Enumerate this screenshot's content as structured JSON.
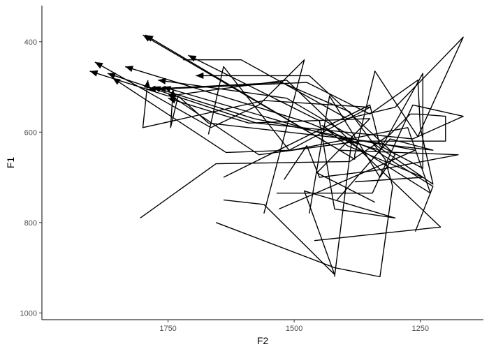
{
  "chart_data": {
    "type": "line",
    "title": "",
    "xlabel": "F2",
    "ylabel": "F1",
    "x_reversed": true,
    "y_reversed": true,
    "xlim": [
      2000,
      1125
    ],
    "ylim": [
      1015,
      320
    ],
    "x_ticks": [
      1750,
      1500,
      1250
    ],
    "y_ticks": [
      400,
      600,
      800,
      1000
    ],
    "grid": false,
    "legend": "none",
    "line_color": "#000000",
    "arrow_at_end": true,
    "series": [
      {
        "values": [
          [
            1670,
            605
          ],
          [
            1640,
            455
          ],
          [
            1510,
            640
          ],
          [
            1350,
            545
          ],
          [
            1560,
            530
          ],
          [
            1800,
            590
          ],
          [
            1790,
            485
          ]
        ]
      },
      {
        "values": [
          [
            1460,
            840
          ],
          [
            1210,
            810
          ],
          [
            1515,
            485
          ],
          [
            1750,
            520
          ],
          [
            1905,
            465
          ]
        ]
      },
      {
        "values": [
          [
            1350,
            620
          ],
          [
            1225,
            715
          ],
          [
            1250,
            590
          ],
          [
            1255,
            485
          ],
          [
            1350,
            560
          ],
          [
            1475,
            490
          ],
          [
            1770,
            505
          ]
        ]
      },
      {
        "values": [
          [
            1520,
            705
          ],
          [
            1475,
            630
          ],
          [
            1450,
            700
          ],
          [
            1340,
            685
          ],
          [
            1175,
            650
          ],
          [
            1410,
            640
          ],
          [
            1800,
            385
          ]
        ]
      },
      {
        "values": [
          [
            1340,
            755
          ],
          [
            1455,
            690
          ],
          [
            1350,
            570
          ],
          [
            1590,
            580
          ],
          [
            1750,
            525
          ]
        ]
      },
      {
        "values": [
          [
            1415,
            750
          ],
          [
            1310,
            615
          ],
          [
            1225,
            640
          ],
          [
            1340,
            625
          ],
          [
            1580,
            570
          ],
          [
            1780,
            500
          ]
        ]
      },
      {
        "values": [
          [
            1260,
            820
          ],
          [
            1225,
            720
          ],
          [
            1340,
            640
          ],
          [
            1470,
            580
          ],
          [
            1835,
            455
          ]
        ]
      },
      {
        "values": [
          [
            1470,
            780
          ],
          [
            1430,
            520
          ],
          [
            1330,
            700
          ],
          [
            1300,
            650
          ],
          [
            1470,
            475
          ],
          [
            1695,
            475
          ]
        ]
      },
      {
        "values": [
          [
            1560,
            780
          ],
          [
            1480,
            440
          ],
          [
            1570,
            540
          ],
          [
            1665,
            590
          ],
          [
            1895,
            445
          ]
        ]
      },
      {
        "values": [
          [
            1640,
            700
          ],
          [
            1350,
            540
          ],
          [
            1330,
            630
          ],
          [
            1245,
            680
          ],
          [
            1245,
            470
          ],
          [
            1330,
            640
          ],
          [
            1760,
            500
          ]
        ]
      },
      {
        "values": [
          [
            1420,
            920
          ],
          [
            1385,
            610
          ],
          [
            1515,
            525
          ],
          [
            1770,
            485
          ]
        ]
      },
      {
        "values": [
          [
            1640,
            750
          ],
          [
            1560,
            760
          ],
          [
            1420,
            915
          ],
          [
            1480,
            730
          ],
          [
            1300,
            790
          ],
          [
            1420,
            770
          ],
          [
            1450,
            575
          ],
          [
            1710,
            430
          ]
        ]
      },
      {
        "values": [
          [
            1535,
            735
          ],
          [
            1345,
            735
          ],
          [
            1265,
            540
          ],
          [
            1165,
            565
          ],
          [
            1265,
            615
          ],
          [
            1575,
            580
          ],
          [
            1870,
            470
          ]
        ]
      },
      {
        "values": [
          [
            1380,
            710
          ],
          [
            1245,
            700
          ],
          [
            1395,
            630
          ],
          [
            1445,
            585
          ],
          [
            1230,
            735
          ],
          [
            1275,
            590
          ],
          [
            1505,
            640
          ],
          [
            1635,
            645
          ],
          [
            1860,
            480
          ]
        ]
      },
      {
        "values": [
          [
            1530,
            770
          ],
          [
            1260,
            640
          ],
          [
            1355,
            620
          ],
          [
            1670,
            580
          ],
          [
            1730,
            520
          ],
          [
            1745,
            590
          ],
          [
            1740,
            505
          ]
        ]
      },
      {
        "values": [
          [
            1805,
            790
          ],
          [
            1655,
            670
          ],
          [
            1390,
            665
          ],
          [
            1310,
            605
          ],
          [
            1270,
            560
          ],
          [
            1255,
            560
          ],
          [
            1200,
            565
          ],
          [
            1200,
            620
          ],
          [
            1370,
            620
          ],
          [
            1570,
            650
          ],
          [
            1750,
            515
          ]
        ]
      },
      {
        "values": [
          [
            1720,
            440
          ],
          [
            1605,
            440
          ],
          [
            1395,
            570
          ],
          [
            1300,
            545
          ],
          [
            1165,
            390
          ],
          [
            1255,
            610
          ],
          [
            1340,
            465
          ],
          [
            1380,
            650
          ],
          [
            1380,
            660
          ],
          [
            1795,
            385
          ]
        ]
      },
      {
        "values": [
          [
            1655,
            800
          ],
          [
            1420,
            900
          ],
          [
            1330,
            920
          ],
          [
            1305,
            720
          ],
          [
            1320,
            660
          ],
          [
            1390,
            555
          ],
          [
            1525,
            490
          ],
          [
            1790,
            505
          ]
        ]
      }
    ]
  }
}
